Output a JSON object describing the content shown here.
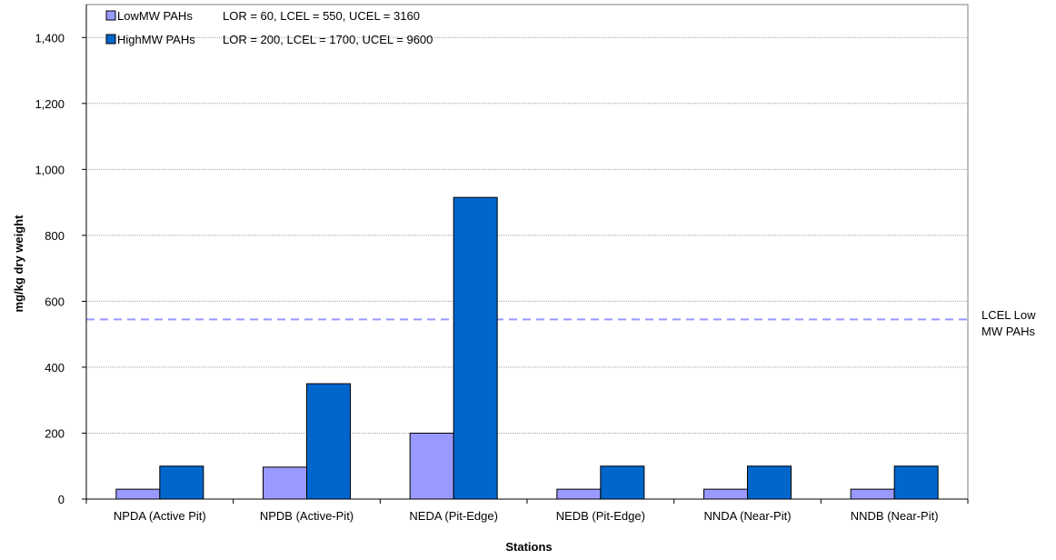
{
  "chart_data": {
    "type": "bar",
    "categories": [
      "NPDA (Active Pit)",
      "NPDB (Active-Pit)",
      "NEDA (Pit-Edge)",
      "NEDB (Pit-Edge)",
      "NNDA (Near-Pit)",
      "NNDB (Near-Pit)"
    ],
    "series": [
      {
        "name": "LowMW PAHs",
        "values": [
          30,
          97,
          200,
          30,
          30,
          30
        ],
        "color": "#9999ff"
      },
      {
        "name": "HighMW PAHs",
        "values": [
          100,
          350,
          915,
          100,
          100,
          100
        ],
        "color": "#0066cc"
      }
    ],
    "legend": {
      "entries": [
        {
          "label": "LowMW PAHs",
          "note": "LOR = 60, LCEL = 550, UCEL = 3160"
        },
        {
          "label": "HighMW PAHs",
          "note": "LOR = 200, LCEL = 1700, UCEL = 9600"
        }
      ],
      "position": "top-left"
    },
    "reference_line": {
      "value": 545,
      "label": "LCEL Low MW PAHs",
      "label_lines": [
        "LCEL Low",
        "MW PAHs"
      ],
      "color": "#9999ff",
      "style": "dashed"
    },
    "xlabel": "Stations",
    "ylabel": "mg/kg dry weight",
    "ylim": [
      0,
      1500
    ],
    "yticks": [
      0,
      200,
      400,
      600,
      800,
      1000,
      1200,
      1400
    ],
    "ytick_labels": [
      "0",
      "200",
      "400",
      "600",
      "800",
      "1,000",
      "1,200",
      "1,400"
    ],
    "grid": true
  }
}
